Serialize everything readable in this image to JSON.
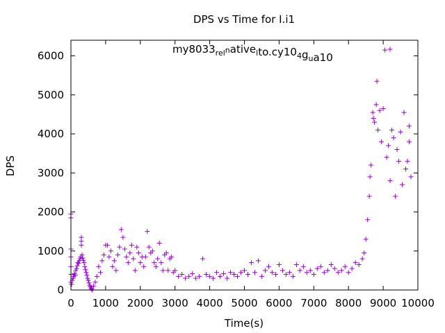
{
  "chart_data": {
    "type": "scatter",
    "title": "DPS vs Time for I.i1",
    "xlabel": "Time(s)",
    "ylabel": "DPS",
    "xlim": [
      0,
      10000
    ],
    "ylim": [
      0,
      6400
    ],
    "xticks": [
      0,
      1000,
      2000,
      3000,
      4000,
      5000,
      6000,
      7000,
      8000,
      9000,
      10000
    ],
    "yticks": [
      0,
      1000,
      2000,
      3000,
      4000,
      5000,
      6000
    ],
    "grid": false,
    "legend": "top-right",
    "legend_label": {
      "parts": [
        {
          "text": "my8033",
          "shift": "none"
        },
        {
          "text": "rel",
          "shift": "sub"
        },
        {
          "text": "n",
          "shift": "sup"
        },
        {
          "text": "ative",
          "shift": "none"
        },
        {
          "text": "l",
          "shift": "sub"
        },
        {
          "text": "to.cy10",
          "shift": "none"
        },
        {
          "text": "4",
          "shift": "sub"
        },
        {
          "text": "g",
          "shift": "none"
        },
        {
          "text": "u",
          "shift": "sub"
        },
        {
          "text": "a10",
          "shift": "none"
        }
      ]
    },
    "marker": "+",
    "color": "#9400d3",
    "series": [
      {
        "name": "my8033_rel_native_to.cy10_4g_ua10",
        "points": [
          [
            0,
            1950
          ],
          [
            0,
            1850
          ],
          [
            0,
            1050
          ],
          [
            0,
            850
          ],
          [
            0,
            600
          ],
          [
            0,
            400
          ],
          [
            0,
            200
          ],
          [
            20,
            150
          ],
          [
            40,
            250
          ],
          [
            60,
            300
          ],
          [
            80,
            350
          ],
          [
            100,
            420
          ],
          [
            120,
            380
          ],
          [
            140,
            500
          ],
          [
            160,
            550
          ],
          [
            180,
            620
          ],
          [
            200,
            700
          ],
          [
            220,
            680
          ],
          [
            240,
            750
          ],
          [
            260,
            800
          ],
          [
            280,
            850
          ],
          [
            300,
            1350
          ],
          [
            300,
            1250
          ],
          [
            300,
            1150
          ],
          [
            320,
            900
          ],
          [
            340,
            820
          ],
          [
            360,
            760
          ],
          [
            380,
            700
          ],
          [
            400,
            600
          ],
          [
            420,
            520
          ],
          [
            440,
            450
          ],
          [
            460,
            380
          ],
          [
            480,
            300
          ],
          [
            500,
            250
          ],
          [
            520,
            180
          ],
          [
            540,
            120
          ],
          [
            560,
            80
          ],
          [
            580,
            40
          ],
          [
            600,
            20
          ],
          [
            620,
            0
          ],
          [
            650,
            100
          ],
          [
            700,
            200
          ],
          [
            750,
            350
          ],
          [
            800,
            600
          ],
          [
            850,
            450
          ],
          [
            900,
            750
          ],
          [
            950,
            900
          ],
          [
            1000,
            1150
          ],
          [
            1050,
            1150
          ],
          [
            1100,
            850
          ],
          [
            1150,
            1000
          ],
          [
            1200,
            600
          ],
          [
            1250,
            750
          ],
          [
            1300,
            500
          ],
          [
            1350,
            900
          ],
          [
            1400,
            1100
          ],
          [
            1450,
            1550
          ],
          [
            1500,
            1350
          ],
          [
            1550,
            1050
          ],
          [
            1600,
            850
          ],
          [
            1650,
            700
          ],
          [
            1700,
            950
          ],
          [
            1750,
            1150
          ],
          [
            1800,
            800
          ],
          [
            1850,
            500
          ],
          [
            1900,
            1100
          ],
          [
            1950,
            950
          ],
          [
            2000,
            700
          ],
          [
            2050,
            850
          ],
          [
            2100,
            600
          ],
          [
            2150,
            850
          ],
          [
            2200,
            1500
          ],
          [
            2250,
            1100
          ],
          [
            2300,
            950
          ],
          [
            2350,
            1000
          ],
          [
            2400,
            700
          ],
          [
            2450,
            600
          ],
          [
            2500,
            800
          ],
          [
            2550,
            1200
          ],
          [
            2600,
            700
          ],
          [
            2650,
            500
          ],
          [
            2700,
            900
          ],
          [
            2750,
            950
          ],
          [
            2800,
            500
          ],
          [
            2850,
            800
          ],
          [
            2900,
            850
          ],
          [
            2950,
            450
          ],
          [
            3000,
            500
          ],
          [
            3100,
            350
          ],
          [
            3200,
            400
          ],
          [
            3300,
            300
          ],
          [
            3400,
            350
          ],
          [
            3500,
            420
          ],
          [
            3600,
            300
          ],
          [
            3700,
            350
          ],
          [
            3800,
            800
          ],
          [
            3900,
            400
          ],
          [
            4000,
            350
          ],
          [
            4100,
            300
          ],
          [
            4200,
            450
          ],
          [
            4300,
            350
          ],
          [
            4400,
            420
          ],
          [
            4500,
            300
          ],
          [
            4600,
            450
          ],
          [
            4700,
            400
          ],
          [
            4800,
            350
          ],
          [
            4900,
            450
          ],
          [
            5000,
            500
          ],
          [
            5100,
            400
          ],
          [
            5200,
            700
          ],
          [
            5300,
            450
          ],
          [
            5400,
            750
          ],
          [
            5500,
            350
          ],
          [
            5600,
            500
          ],
          [
            5700,
            600
          ],
          [
            5800,
            450
          ],
          [
            5900,
            400
          ],
          [
            6000,
            650
          ],
          [
            6100,
            500
          ],
          [
            6200,
            400
          ],
          [
            6300,
            450
          ],
          [
            6400,
            350
          ],
          [
            6500,
            650
          ],
          [
            6600,
            500
          ],
          [
            6700,
            600
          ],
          [
            6800,
            450
          ],
          [
            6900,
            500
          ],
          [
            7000,
            400
          ],
          [
            7100,
            550
          ],
          [
            7200,
            600
          ],
          [
            7300,
            450
          ],
          [
            7400,
            500
          ],
          [
            7500,
            650
          ],
          [
            7600,
            550
          ],
          [
            7700,
            450
          ],
          [
            7800,
            500
          ],
          [
            7900,
            600
          ],
          [
            8000,
            450
          ],
          [
            8100,
            550
          ],
          [
            8200,
            700
          ],
          [
            8300,
            650
          ],
          [
            8400,
            800
          ],
          [
            8450,
            950
          ],
          [
            8500,
            1300
          ],
          [
            8550,
            1800
          ],
          [
            8600,
            2400
          ],
          [
            8620,
            2900
          ],
          [
            8650,
            3200
          ],
          [
            8700,
            4550
          ],
          [
            8720,
            4400
          ],
          [
            8750,
            4300
          ],
          [
            8800,
            4750
          ],
          [
            8820,
            5350
          ],
          [
            8850,
            4100
          ],
          [
            8900,
            4600
          ],
          [
            8950,
            3800
          ],
          [
            9000,
            4650
          ],
          [
            9050,
            6150
          ],
          [
            9100,
            3400
          ],
          [
            9150,
            3700
          ],
          [
            9200,
            2800
          ],
          [
            9250,
            4100
          ],
          [
            9300,
            3900
          ],
          [
            9350,
            2400
          ],
          [
            9400,
            3600
          ],
          [
            9450,
            3300
          ],
          [
            9500,
            4050
          ],
          [
            9550,
            2700
          ],
          [
            9600,
            4550
          ],
          [
            9650,
            3100
          ],
          [
            9700,
            3300
          ],
          [
            9750,
            4200
          ],
          [
            9750,
            3800
          ],
          [
            9800,
            2900
          ]
        ]
      }
    ]
  }
}
